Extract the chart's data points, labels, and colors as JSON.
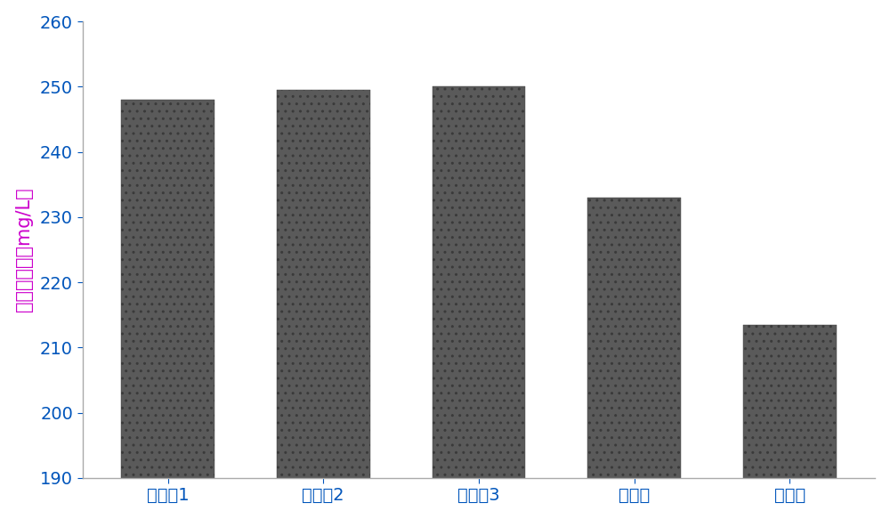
{
  "categories": [
    "试验的1",
    "试验的2",
    "试验的3",
    "对照组",
    "空白组"
  ],
  "values": [
    248,
    249.5,
    250,
    233,
    213.5
  ],
  "bar_color": "#5a5a5a",
  "bar_hatch_color": "#3a3a3a",
  "ylabel": "产物表达量（mg/L）",
  "ylim": [
    190,
    260
  ],
  "yticks": [
    190,
    200,
    210,
    220,
    230,
    240,
    250,
    260
  ],
  "bar_width": 0.6,
  "ylabel_color": "#cc00cc",
  "tick_color": "#0055bb",
  "background_color": "#ffffff",
  "ylabel_fontsize": 15,
  "xtick_fontsize": 14,
  "ytick_fontsize": 14,
  "left_spine_color": "#aaaaaa",
  "bottom_spine_color": "#aaaaaa"
}
